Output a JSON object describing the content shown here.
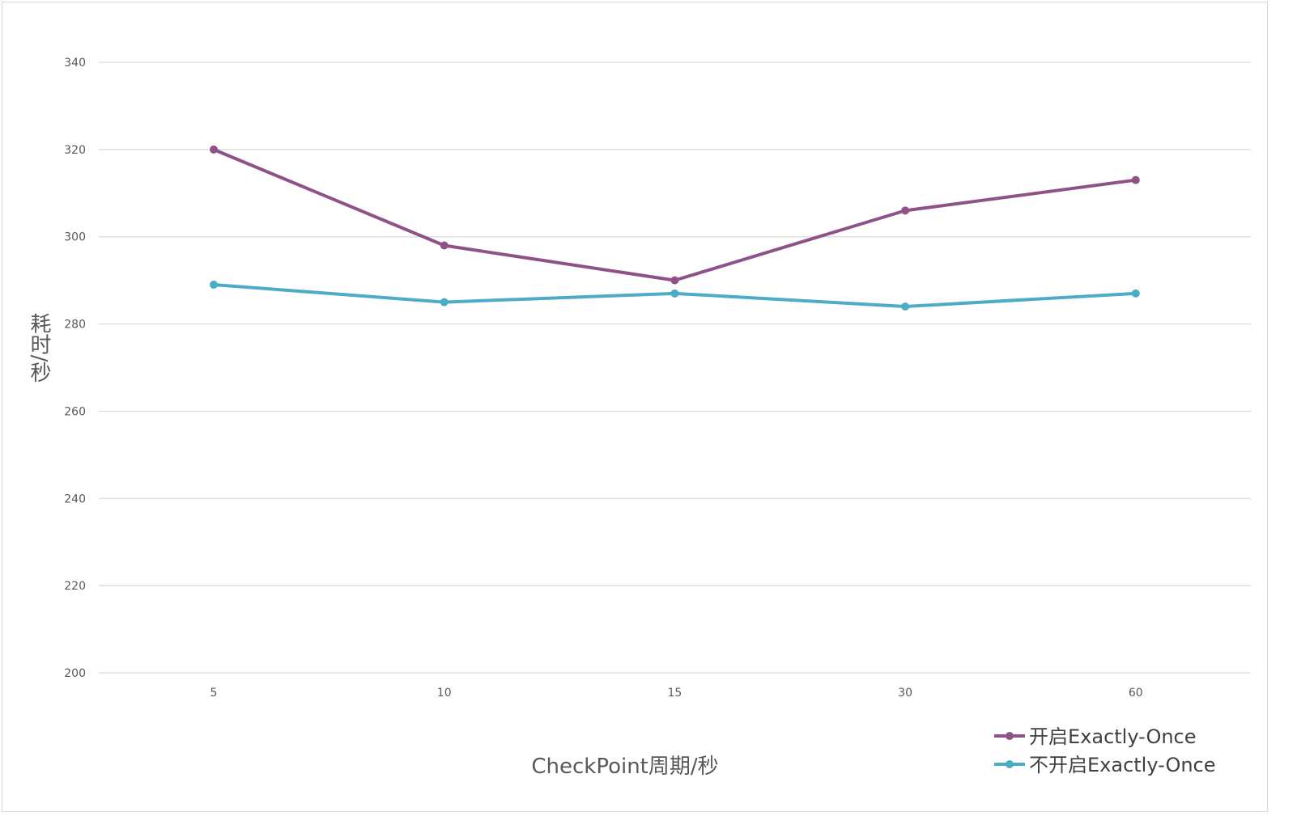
{
  "chart_data": {
    "type": "line",
    "title": "",
    "xlabel": "CheckPoint周期/秒",
    "ylabel": "耗时/秒",
    "categories": [
      "5",
      "10",
      "15",
      "30",
      "60"
    ],
    "ylim": [
      200,
      340
    ],
    "yticks": [
      200,
      220,
      240,
      260,
      280,
      300,
      320,
      340
    ],
    "grid": true,
    "legend_position": "bottom-right",
    "series": [
      {
        "name": "开启Exactly-Once",
        "color": "#8e5289",
        "values": [
          320,
          298,
          290,
          306,
          313
        ]
      },
      {
        "name": "不开启Exactly-Once",
        "color": "#4bacc6",
        "values": [
          289,
          285,
          287,
          284,
          287
        ]
      }
    ]
  }
}
